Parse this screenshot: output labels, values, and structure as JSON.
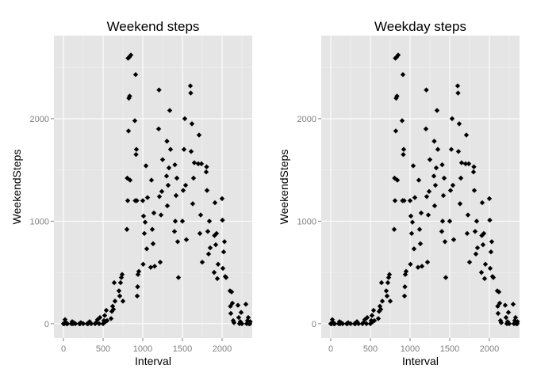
{
  "colors": {
    "panel_background": "#e5e5e5",
    "major_gridline": "#ffffff",
    "minor_gridline": "#f2f2f2",
    "point": "#000000",
    "tick_label": "#7f7f7f"
  },
  "chart_data": [
    {
      "type": "scatter",
      "title": "Weekend steps",
      "xlabel": "Interval",
      "ylabel": "WeekendSteps",
      "xlim": [
        -120,
        2380
      ],
      "ylim": [
        -140,
        2810
      ],
      "x_ticks": [
        0,
        500,
        1000,
        1500,
        2000
      ],
      "y_ticks": [
        0,
        1000,
        2000
      ],
      "x_tick_labels": [
        "0",
        "500",
        "1000",
        "1500",
        "2000"
      ],
      "y_tick_labels": [
        "0",
        "1000",
        "2000"
      ],
      "grid": true,
      "legend": "none",
      "points": [
        [
          0,
          0
        ],
        [
          10,
          0
        ],
        [
          20,
          40
        ],
        [
          30,
          10
        ],
        [
          40,
          0
        ],
        [
          50,
          0
        ],
        [
          100,
          0
        ],
        [
          110,
          20
        ],
        [
          120,
          0
        ],
        [
          130,
          10
        ],
        [
          150,
          0
        ],
        [
          200,
          0
        ],
        [
          210,
          0
        ],
        [
          220,
          10
        ],
        [
          250,
          0
        ],
        [
          300,
          0
        ],
        [
          310,
          0
        ],
        [
          330,
          20
        ],
        [
          350,
          0
        ],
        [
          400,
          0
        ],
        [
          410,
          10
        ],
        [
          430,
          40
        ],
        [
          450,
          0
        ],
        [
          460,
          60
        ],
        [
          500,
          0
        ],
        [
          510,
          30
        ],
        [
          520,
          80
        ],
        [
          530,
          20
        ],
        [
          540,
          130
        ],
        [
          550,
          30
        ],
        [
          600,
          50
        ],
        [
          610,
          120
        ],
        [
          620,
          170
        ],
        [
          630,
          140
        ],
        [
          640,
          400
        ],
        [
          650,
          220
        ],
        [
          700,
          320
        ],
        [
          710,
          270
        ],
        [
          720,
          400
        ],
        [
          730,
          450
        ],
        [
          740,
          480
        ],
        [
          750,
          220
        ],
        [
          800,
          920
        ],
        [
          805,
          1420
        ],
        [
          810,
          1200
        ],
        [
          815,
          2590
        ],
        [
          820,
          1880
        ],
        [
          825,
          2200
        ],
        [
          830,
          2600
        ],
        [
          835,
          2220
        ],
        [
          840,
          1400
        ],
        [
          850,
          2620
        ],
        [
          900,
          1980
        ],
        [
          905,
          1200
        ],
        [
          910,
          2430
        ],
        [
          915,
          1650
        ],
        [
          920,
          1700
        ],
        [
          925,
          1200
        ],
        [
          930,
          270
        ],
        [
          935,
          360
        ],
        [
          940,
          480
        ],
        [
          950,
          510
        ],
        [
          1000,
          1200
        ],
        [
          1005,
          580
        ],
        [
          1010,
          1050
        ],
        [
          1020,
          880
        ],
        [
          1030,
          990
        ],
        [
          1040,
          1540
        ],
        [
          1050,
          730
        ],
        [
          1060,
          1230
        ],
        [
          1100,
          550
        ],
        [
          1110,
          1400
        ],
        [
          1120,
          920
        ],
        [
          1130,
          780
        ],
        [
          1140,
          1080
        ],
        [
          1150,
          560
        ],
        [
          1200,
          1900
        ],
        [
          1205,
          2280
        ],
        [
          1210,
          1240
        ],
        [
          1220,
          600
        ],
        [
          1230,
          1060
        ],
        [
          1240,
          1290
        ],
        [
          1250,
          1600
        ],
        [
          1300,
          1440
        ],
        [
          1305,
          1780
        ],
        [
          1310,
          1150
        ],
        [
          1320,
          1350
        ],
        [
          1330,
          1520
        ],
        [
          1340,
          2080
        ],
        [
          1350,
          1700
        ],
        [
          1400,
          900
        ],
        [
          1405,
          1550
        ],
        [
          1410,
          1000
        ],
        [
          1420,
          1250
        ],
        [
          1430,
          1420
        ],
        [
          1440,
          800
        ],
        [
          1450,
          450
        ],
        [
          1500,
          1000
        ],
        [
          1510,
          1300
        ],
        [
          1520,
          1700
        ],
        [
          1530,
          2000
        ],
        [
          1540,
          1350
        ],
        [
          1550,
          820
        ],
        [
          1600,
          2320
        ],
        [
          1605,
          2250
        ],
        [
          1610,
          1680
        ],
        [
          1620,
          1950
        ],
        [
          1630,
          1170
        ],
        [
          1640,
          1420
        ],
        [
          1650,
          1570
        ],
        [
          1700,
          1560
        ],
        [
          1710,
          1840
        ],
        [
          1720,
          880
        ],
        [
          1730,
          1060
        ],
        [
          1740,
          1560
        ],
        [
          1750,
          600
        ],
        [
          1800,
          1480
        ],
        [
          1805,
          1530
        ],
        [
          1810,
          1300
        ],
        [
          1820,
          900
        ],
        [
          1830,
          680
        ],
        [
          1840,
          1000
        ],
        [
          1850,
          740
        ],
        [
          1900,
          500
        ],
        [
          1905,
          860
        ],
        [
          1910,
          1180
        ],
        [
          1920,
          770
        ],
        [
          1930,
          880
        ],
        [
          1940,
          440
        ],
        [
          1950,
          580
        ],
        [
          2000,
          1220
        ],
        [
          2005,
          1010
        ],
        [
          2010,
          540
        ],
        [
          2020,
          700
        ],
        [
          2030,
          800
        ],
        [
          2040,
          460
        ],
        [
          2050,
          450
        ],
        [
          2100,
          320
        ],
        [
          2105,
          170
        ],
        [
          2110,
          100
        ],
        [
          2120,
          310
        ],
        [
          2130,
          200
        ],
        [
          2140,
          30
        ],
        [
          2150,
          10
        ],
        [
          2200,
          180
        ],
        [
          2210,
          60
        ],
        [
          2220,
          0
        ],
        [
          2230,
          20
        ],
        [
          2240,
          110
        ],
        [
          2250,
          0
        ],
        [
          2300,
          190
        ],
        [
          2310,
          0
        ],
        [
          2320,
          30
        ],
        [
          2330,
          60
        ],
        [
          2340,
          0
        ],
        [
          2350,
          0
        ],
        [
          2355,
          20
        ]
      ]
    },
    {
      "type": "scatter",
      "title": "Weekday steps",
      "xlabel": "Interval",
      "ylabel": "WeekendSteps",
      "xlim": [
        -120,
        2380
      ],
      "ylim": [
        -140,
        2810
      ],
      "x_ticks": [
        0,
        500,
        1000,
        1500,
        2000
      ],
      "y_ticks": [
        0,
        1000,
        2000
      ],
      "x_tick_labels": [
        "0",
        "500",
        "1000",
        "1500",
        "2000"
      ],
      "y_tick_labels": [
        "0",
        "1000",
        "2000"
      ],
      "grid": true,
      "legend": "none",
      "points": [
        [
          0,
          0
        ],
        [
          10,
          0
        ],
        [
          20,
          40
        ],
        [
          30,
          10
        ],
        [
          40,
          0
        ],
        [
          50,
          0
        ],
        [
          100,
          0
        ],
        [
          110,
          20
        ],
        [
          120,
          0
        ],
        [
          130,
          10
        ],
        [
          150,
          0
        ],
        [
          200,
          0
        ],
        [
          210,
          0
        ],
        [
          220,
          10
        ],
        [
          250,
          0
        ],
        [
          300,
          0
        ],
        [
          310,
          0
        ],
        [
          330,
          20
        ],
        [
          350,
          0
        ],
        [
          400,
          0
        ],
        [
          410,
          10
        ],
        [
          430,
          40
        ],
        [
          450,
          0
        ],
        [
          460,
          60
        ],
        [
          500,
          0
        ],
        [
          510,
          30
        ],
        [
          520,
          80
        ],
        [
          530,
          20
        ],
        [
          540,
          130
        ],
        [
          550,
          30
        ],
        [
          600,
          50
        ],
        [
          610,
          120
        ],
        [
          620,
          170
        ],
        [
          630,
          140
        ],
        [
          640,
          400
        ],
        [
          650,
          220
        ],
        [
          700,
          320
        ],
        [
          710,
          270
        ],
        [
          720,
          400
        ],
        [
          730,
          450
        ],
        [
          740,
          480
        ],
        [
          750,
          220
        ],
        [
          800,
          920
        ],
        [
          805,
          1420
        ],
        [
          810,
          1200
        ],
        [
          815,
          2590
        ],
        [
          820,
          1880
        ],
        [
          825,
          2200
        ],
        [
          830,
          2600
        ],
        [
          835,
          2220
        ],
        [
          840,
          1400
        ],
        [
          850,
          2620
        ],
        [
          900,
          1980
        ],
        [
          905,
          1200
        ],
        [
          910,
          2430
        ],
        [
          915,
          1650
        ],
        [
          920,
          1700
        ],
        [
          925,
          1200
        ],
        [
          930,
          270
        ],
        [
          935,
          360
        ],
        [
          940,
          480
        ],
        [
          950,
          510
        ],
        [
          1000,
          1200
        ],
        [
          1005,
          580
        ],
        [
          1010,
          1050
        ],
        [
          1020,
          880
        ],
        [
          1030,
          990
        ],
        [
          1040,
          1540
        ],
        [
          1050,
          730
        ],
        [
          1060,
          1230
        ],
        [
          1100,
          550
        ],
        [
          1110,
          1400
        ],
        [
          1120,
          920
        ],
        [
          1130,
          780
        ],
        [
          1140,
          1080
        ],
        [
          1150,
          560
        ],
        [
          1200,
          1900
        ],
        [
          1205,
          2280
        ],
        [
          1210,
          1240
        ],
        [
          1220,
          600
        ],
        [
          1230,
          1060
        ],
        [
          1240,
          1290
        ],
        [
          1250,
          1600
        ],
        [
          1300,
          1440
        ],
        [
          1305,
          1780
        ],
        [
          1310,
          1150
        ],
        [
          1320,
          1350
        ],
        [
          1330,
          1520
        ],
        [
          1340,
          2080
        ],
        [
          1350,
          1700
        ],
        [
          1400,
          900
        ],
        [
          1405,
          1550
        ],
        [
          1410,
          1000
        ],
        [
          1420,
          1250
        ],
        [
          1430,
          1420
        ],
        [
          1440,
          800
        ],
        [
          1450,
          450
        ],
        [
          1500,
          1000
        ],
        [
          1510,
          1300
        ],
        [
          1520,
          1700
        ],
        [
          1530,
          2000
        ],
        [
          1540,
          1350
        ],
        [
          1550,
          820
        ],
        [
          1600,
          2320
        ],
        [
          1605,
          2250
        ],
        [
          1610,
          1680
        ],
        [
          1620,
          1950
        ],
        [
          1630,
          1170
        ],
        [
          1640,
          1420
        ],
        [
          1650,
          1570
        ],
        [
          1700,
          1560
        ],
        [
          1710,
          1840
        ],
        [
          1720,
          880
        ],
        [
          1730,
          1060
        ],
        [
          1740,
          1560
        ],
        [
          1750,
          600
        ],
        [
          1800,
          1480
        ],
        [
          1805,
          1530
        ],
        [
          1810,
          1300
        ],
        [
          1820,
          900
        ],
        [
          1830,
          680
        ],
        [
          1840,
          1000
        ],
        [
          1850,
          740
        ],
        [
          1900,
          500
        ],
        [
          1905,
          860
        ],
        [
          1910,
          1180
        ],
        [
          1920,
          770
        ],
        [
          1930,
          880
        ],
        [
          1940,
          440
        ],
        [
          1950,
          580
        ],
        [
          2000,
          1220
        ],
        [
          2005,
          1010
        ],
        [
          2010,
          540
        ],
        [
          2020,
          700
        ],
        [
          2030,
          800
        ],
        [
          2040,
          460
        ],
        [
          2050,
          450
        ],
        [
          2100,
          320
        ],
        [
          2105,
          170
        ],
        [
          2110,
          100
        ],
        [
          2120,
          310
        ],
        [
          2130,
          200
        ],
        [
          2140,
          30
        ],
        [
          2150,
          10
        ],
        [
          2200,
          180
        ],
        [
          2210,
          60
        ],
        [
          2220,
          0
        ],
        [
          2230,
          20
        ],
        [
          2240,
          110
        ],
        [
          2250,
          0
        ],
        [
          2300,
          190
        ],
        [
          2310,
          0
        ],
        [
          2320,
          30
        ],
        [
          2330,
          60
        ],
        [
          2340,
          0
        ],
        [
          2350,
          0
        ],
        [
          2355,
          20
        ]
      ]
    }
  ]
}
